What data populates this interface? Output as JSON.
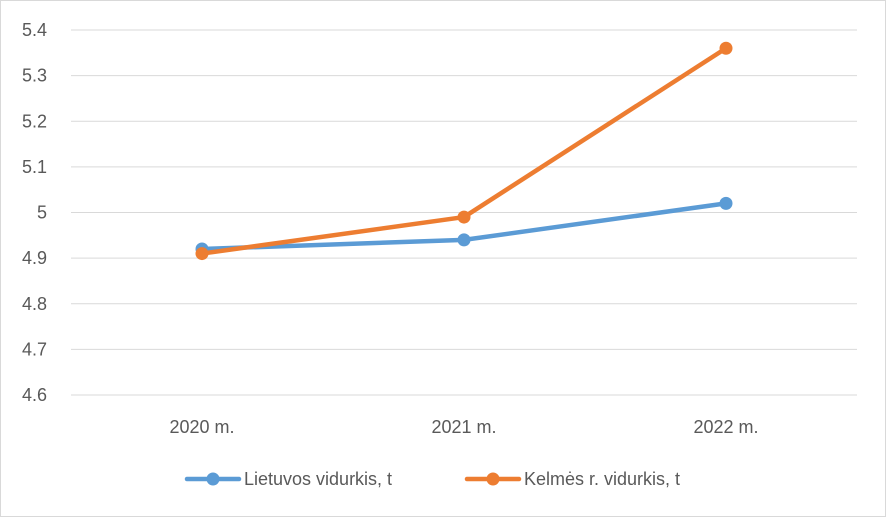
{
  "chart_data": {
    "type": "line",
    "title": "",
    "xlabel": "",
    "ylabel": "",
    "categories": [
      "2020 m.",
      "2021 m.",
      "2022 m."
    ],
    "ylim": [
      4.6,
      5.4
    ],
    "yticks": [
      "4.6",
      "4.7",
      "4.8",
      "4.9",
      "5",
      "5.1",
      "5.2",
      "5.3",
      "5.4"
    ],
    "grid": true,
    "legend_position": "bottom",
    "series": [
      {
        "name": "Lietuvos vidurkis, t",
        "values": [
          4.92,
          4.94,
          5.02
        ],
        "color": "#5b9bd5"
      },
      {
        "name": "Kelmės r. vidurkis, t",
        "values": [
          4.91,
          4.99,
          5.36
        ],
        "color": "#ed7d31"
      }
    ]
  }
}
